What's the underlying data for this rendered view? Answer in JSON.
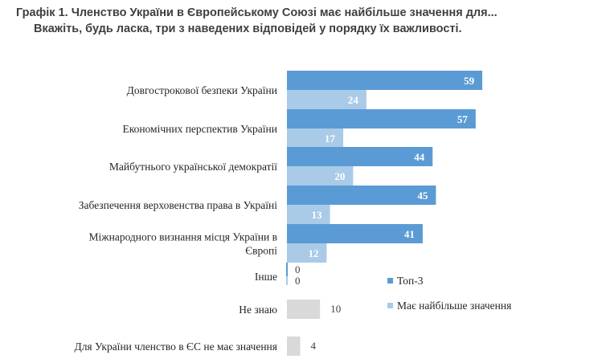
{
  "title": {
    "line1": "Графік 1. Членство України в Європейському Союзі має найбільше значення для...",
    "line2": "Вкажіть, будь ласка, три з наведених відповідей у порядку їх важливості."
  },
  "chart_data": {
    "type": "bar",
    "orientation": "horizontal",
    "title": "Графік 1. Членство України в Європейському Союзі має найбільше значення для... Вкажіть, будь ласка, три з наведених відповідей у порядку їх важливості.",
    "xlabel": "",
    "ylabel": "",
    "grid": false,
    "legend_position": "right",
    "categories": [
      [
        "Довгострокової безпеки України"
      ],
      [
        "Економічних перспектив України"
      ],
      [
        "Майбутнього української демократії"
      ],
      [
        "Забезпечення верховенства права в Україні"
      ],
      [
        "Міжнародного визнання місця України в",
        "Європі"
      ],
      [
        "Інше"
      ],
      [
        "Не знаю"
      ],
      [
        "Для України членство в ЄС не має значення"
      ]
    ],
    "series": [
      {
        "name": "Топ-3",
        "color": "#5b9bd5",
        "values": [
          59,
          57,
          44,
          45,
          41,
          0,
          null,
          null
        ]
      },
      {
        "name": "Має найбільше значення",
        "color": "#a9cbe8",
        "values": [
          24,
          17,
          20,
          13,
          12,
          0,
          null,
          null
        ]
      },
      {
        "name": "",
        "color": "#d9d9d9",
        "values": [
          null,
          null,
          null,
          null,
          null,
          null,
          10,
          4
        ]
      }
    ]
  }
}
